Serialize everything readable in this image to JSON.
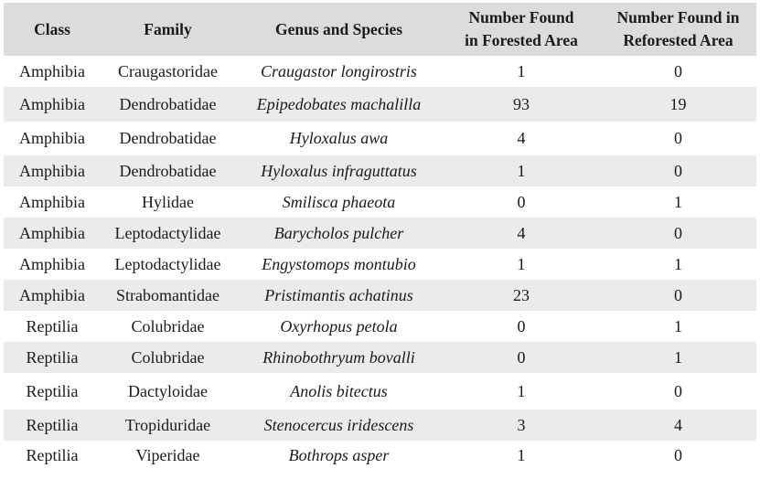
{
  "table": {
    "headers": {
      "class": "Class",
      "family": "Family",
      "species": "Genus and Species",
      "forested_line1": "Number Found",
      "forested_line2": "in Forested Area",
      "reforested_line1": "Number Found in",
      "reforested_line2": "Reforested Area"
    },
    "rows": [
      {
        "class": "Amphibia",
        "family": "Craugastoridae",
        "species": "Craugastor longirostris",
        "forested": "1",
        "reforested": "0"
      },
      {
        "class": "Amphibia",
        "family": "Dendrobatidae",
        "species": "Epipedobates machalilla",
        "forested": "93",
        "reforested": "19"
      },
      {
        "class": "Amphibia",
        "family": "Dendrobatidae",
        "species": "Hyloxalus awa",
        "forested": "4",
        "reforested": "0"
      },
      {
        "class": "Amphibia",
        "family": "Dendrobatidae",
        "species": "Hyloxalus infraguttatus",
        "forested": "1",
        "reforested": "0"
      },
      {
        "class": "Amphibia",
        "family": "Hylidae",
        "species": "Smilisca phaeota",
        "forested": "0",
        "reforested": "1"
      },
      {
        "class": "Amphibia",
        "family": "Leptodactylidae",
        "species": "Barycholos pulcher",
        "forested": "4",
        "reforested": "0"
      },
      {
        "class": "Amphibia",
        "family": "Leptodactylidae",
        "species": "Engystomops montubio",
        "forested": "1",
        "reforested": "1"
      },
      {
        "class": "Amphibia",
        "family": "Strabomantidae",
        "species": "Pristimantis achatinus",
        "forested": "23",
        "reforested": "0"
      },
      {
        "class": "Reptilia",
        "family": "Colubridae",
        "species": "Oxyrhopus petola",
        "forested": "0",
        "reforested": "1"
      },
      {
        "class": "Reptilia",
        "family": "Colubridae",
        "species": "Rhinobothryum bovalli",
        "forested": "0",
        "reforested": "1"
      },
      {
        "class": "Reptilia",
        "family": "Dactyloidae",
        "species": "Anolis bitectus",
        "forested": "1",
        "reforested": "0"
      },
      {
        "class": "Reptilia",
        "family": "Tropiduridae",
        "species": "Stenocercus iridescens",
        "forested": "3",
        "reforested": "4"
      },
      {
        "class": "Reptilia",
        "family": "Viperidae",
        "species": "Bothrops asper",
        "forested": "1",
        "reforested": "0"
      }
    ]
  }
}
